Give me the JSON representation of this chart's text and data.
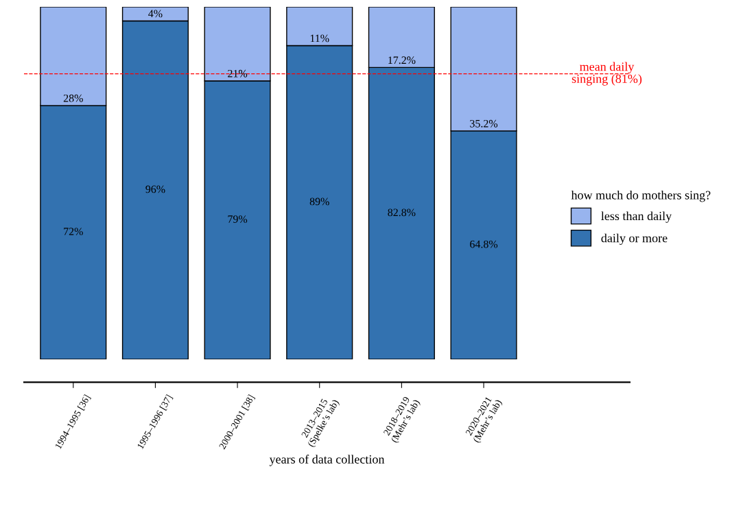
{
  "chart_data": {
    "type": "bar",
    "stacked": true,
    "xlabel": "years of data collection",
    "legend_title": "how much do mothers sing?",
    "legend": "right",
    "tick_labels": "x",
    "ylim": [
      0,
      100
    ],
    "categories": [
      "1994–1995 [36]",
      "1995–1996 [37]",
      "2000–2001 [38]",
      "2013–2015\n(Spelke’s lab)",
      "2018–2019\n(Mehr’s lab)",
      "2020–2021\n(Mehr’s lab)"
    ],
    "series": [
      {
        "name": "daily or more",
        "color": "#3372b0",
        "values": [
          72,
          96,
          79,
          89,
          82.8,
          64.8
        ],
        "value_labels": [
          "72%",
          "96%",
          "79%",
          "89%",
          "82.8%",
          "64.8%"
        ]
      },
      {
        "name": "less than daily",
        "color": "#98b4ee",
        "values": [
          28,
          4,
          21,
          11,
          17.2,
          35.2
        ],
        "value_labels": [
          "28%",
          "4%",
          "21%",
          "11%",
          "17.2%",
          "35.2%"
        ]
      }
    ],
    "ref_lines": [
      {
        "axis": "y",
        "value": 81,
        "label": "mean daily\nsinging (81%)",
        "color": "#ff0000",
        "line_style": "dashed"
      }
    ]
  }
}
